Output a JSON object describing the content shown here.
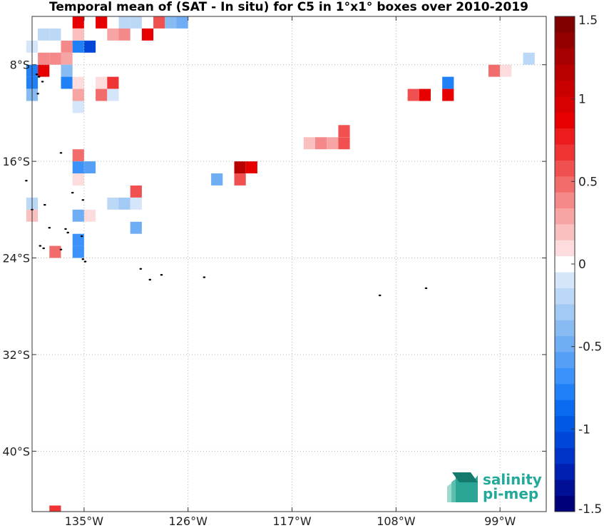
{
  "title": "Temporal mean of (SAT - In situ) for C5 in 1°x1° boxes over 2010-2019",
  "map": {
    "lon_range": [
      -139.5,
      -95.0
    ],
    "lat_range": [
      -45.0,
      -4.0
    ],
    "x_ticks": [
      {
        "lon": -135,
        "label": "135°W"
      },
      {
        "lon": -126,
        "label": "126°W"
      },
      {
        "lon": -117,
        "label": "117°W"
      },
      {
        "lon": -108,
        "label": "108°W"
      },
      {
        "lon": -99,
        "label": "99°W"
      }
    ],
    "y_ticks": [
      {
        "lat": -8,
        "label": "8°S"
      },
      {
        "lat": -16,
        "label": "16°S"
      },
      {
        "lat": -24,
        "label": "24°S"
      },
      {
        "lat": -32,
        "label": "32°S"
      },
      {
        "lat": -40,
        "label": "40°S"
      }
    ],
    "grid": true,
    "cells": [
      [
        -135.5,
        -4.5,
        0.9
      ],
      [
        -133.5,
        -4.5,
        0.9
      ],
      [
        -131.5,
        -4.5,
        -0.2
      ],
      [
        -130.5,
        -4.5,
        -0.2
      ],
      [
        -128.5,
        -4.5,
        0.6
      ],
      [
        -127.5,
        -4.5,
        -0.4
      ],
      [
        -126.5,
        -4.5,
        -0.5
      ],
      [
        -138.5,
        -5.5,
        -0.2
      ],
      [
        -137.5,
        -5.5,
        -0.2
      ],
      [
        -135.5,
        -5.5,
        0.2
      ],
      [
        -132.5,
        -5.5,
        0.3
      ],
      [
        -131.5,
        -5.5,
        0.4
      ],
      [
        -129.5,
        -5.5,
        0.9
      ],
      [
        -139.5,
        -6.5,
        -0.1
      ],
      [
        -136.5,
        -6.5,
        0.4
      ],
      [
        -135.5,
        -6.5,
        -0.8
      ],
      [
        -134.5,
        -6.5,
        -1.1
      ],
      [
        -138.5,
        -7.5,
        0.4
      ],
      [
        -137.5,
        -7.5,
        0.4
      ],
      [
        -136.5,
        -7.5,
        0.3
      ],
      [
        -96.5,
        -7.5,
        -0.2
      ],
      [
        -139.5,
        -8.5,
        -0.8
      ],
      [
        -138.5,
        -8.5,
        0.9
      ],
      [
        -136.5,
        -8.5,
        -0.4
      ],
      [
        -99.5,
        -8.5,
        0.5
      ],
      [
        -98.5,
        -8.5,
        0.1
      ],
      [
        -139.5,
        -9.5,
        -0.8
      ],
      [
        -136.5,
        -9.5,
        -0.8
      ],
      [
        -135.5,
        -9.5,
        0.1
      ],
      [
        -133.5,
        -9.5,
        0.1
      ],
      [
        -132.5,
        -9.5,
        0.7
      ],
      [
        -103.5,
        -9.5,
        -0.8
      ],
      [
        -139.5,
        -10.5,
        -0.4
      ],
      [
        -135.5,
        -10.5,
        0.3
      ],
      [
        -133.5,
        -10.5,
        0.5
      ],
      [
        -132.5,
        -10.5,
        -0.1
      ],
      [
        -106.5,
        -10.5,
        0.6
      ],
      [
        -105.5,
        -10.5,
        0.9
      ],
      [
        -103.5,
        -10.5,
        0.9
      ],
      [
        -135.5,
        -11.5,
        -0.1
      ],
      [
        -112.5,
        -13.5,
        0.6
      ],
      [
        -115.5,
        -14.5,
        0.2
      ],
      [
        -114.5,
        -14.5,
        0.4
      ],
      [
        -113.5,
        -14.5,
        0.3
      ],
      [
        -112.5,
        -14.5,
        0.6
      ],
      [
        -135.5,
        -15.5,
        0.5
      ],
      [
        -121.5,
        -16.5,
        1.2
      ],
      [
        -120.5,
        -16.5,
        0.9
      ],
      [
        -135.5,
        -16.5,
        -0.7
      ],
      [
        -134.5,
        -16.5,
        -0.6
      ],
      [
        -123.5,
        -17.5,
        -0.5
      ],
      [
        -121.5,
        -17.5,
        0.6
      ],
      [
        -135.5,
        -17.5,
        0.1
      ],
      [
        -130.5,
        -18.5,
        0.6
      ],
      [
        -139.5,
        -19.5,
        -0.2
      ],
      [
        -132.5,
        -19.5,
        -0.2
      ],
      [
        -131.5,
        -19.5,
        -0.3
      ],
      [
        -130.5,
        -19.5,
        -0.1
      ],
      [
        -139.5,
        -20.5,
        0.2
      ],
      [
        -135.5,
        -20.5,
        -0.5
      ],
      [
        -134.5,
        -20.5,
        0.1
      ],
      [
        -130.5,
        -21.5,
        -0.5
      ],
      [
        -135.5,
        -22.5,
        -0.7
      ],
      [
        -135.5,
        -23.5,
        -0.7
      ],
      [
        -137.5,
        -23.5,
        0.5
      ],
      [
        -137.5,
        -45.0,
        0.7
      ]
    ],
    "islands": [
      [
        -139.1,
        -8.8
      ],
      [
        -138.9,
        -9.0
      ],
      [
        -138.6,
        -9.4
      ],
      [
        -139.0,
        -10.4
      ],
      [
        -137.0,
        -15.3
      ],
      [
        -140.0,
        -17.6
      ],
      [
        -136.0,
        -18.6
      ],
      [
        -135.1,
        -19.2
      ],
      [
        -138.4,
        -19.6
      ],
      [
        -139.5,
        -20.0
      ],
      [
        -138.0,
        -21.5
      ],
      [
        -136.6,
        -21.6
      ],
      [
        -136.4,
        -21.9
      ],
      [
        -135.2,
        -22.2
      ],
      [
        -138.8,
        -23.0
      ],
      [
        -138.5,
        -23.2
      ],
      [
        -137.0,
        -23.3
      ],
      [
        -135.1,
        -24.1
      ],
      [
        -134.9,
        -24.3
      ],
      [
        -130.1,
        -24.9
      ],
      [
        -128.3,
        -25.4
      ],
      [
        -124.6,
        -25.6
      ],
      [
        -109.4,
        -27.1
      ],
      [
        -105.4,
        -26.5
      ],
      [
        -129.3,
        -25.8
      ]
    ]
  },
  "colorbar": {
    "min": -1.5,
    "max": 1.5,
    "ticks": [
      {
        "value": 1.5,
        "label": "1.5"
      },
      {
        "value": 1,
        "label": "1"
      },
      {
        "value": 0.5,
        "label": "0.5"
      },
      {
        "value": 0,
        "label": "0"
      },
      {
        "value": -0.5,
        "label": "-0.5"
      },
      {
        "value": -1,
        "label": "-1"
      },
      {
        "value": -1.5,
        "label": "-1.5"
      }
    ],
    "colors": [
      "#00007a",
      "#001096",
      "#0020b2",
      "#0033c8",
      "#0046d8",
      "#0058e4",
      "#0a6bf0",
      "#1f80f8",
      "#3a92fa",
      "#559ff6",
      "#6fadf4",
      "#89bbf3",
      "#a3caf5",
      "#bcd8f7",
      "#d6e6fa",
      "#ffffff",
      "#fcdcdc",
      "#fac0c0",
      "#f7a4a4",
      "#f58888",
      "#f26c6c",
      "#f05050",
      "#ee3434",
      "#ec1c1c",
      "#e60000",
      "#d80000",
      "#c80000",
      "#b80000",
      "#a60000",
      "#940000",
      "#800000"
    ]
  },
  "logo": {
    "line1": "salinity",
    "line2": "pi-mep"
  }
}
